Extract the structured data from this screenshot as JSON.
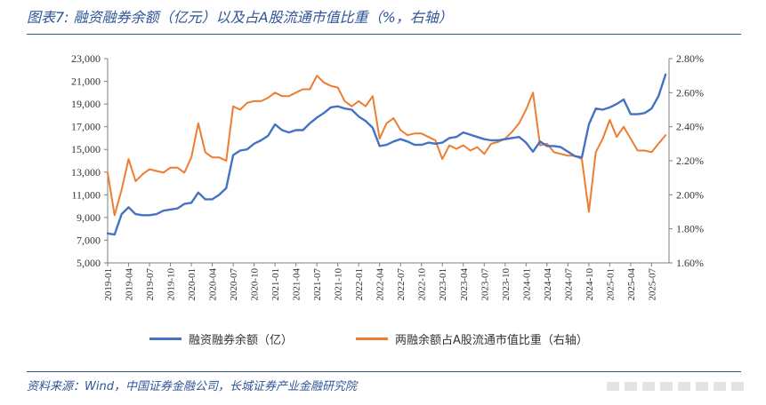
{
  "figure": {
    "title": "图表7: 融资融券余额（亿元）以及占A股流通市值比重（%，右轴）",
    "source": "资料来源：Wind，中国证券金融公司，长城证券产业金融研究院"
  },
  "colors": {
    "blue": "#4472c4",
    "orange": "#ed7d31",
    "accent": "#2f5597"
  },
  "chart_data": {
    "type": "line",
    "title": "",
    "xlabel": "",
    "ylabel": "",
    "y_left": {
      "ticks": [
        "5,000",
        "7,000",
        "9,000",
        "11,000",
        "13,000",
        "15,000",
        "17,000",
        "19,000",
        "21,000",
        "23,000"
      ],
      "range": [
        5000,
        23000
      ]
    },
    "y_right": {
      "ticks": [
        "1.60%",
        "1.80%",
        "2.00%",
        "2.20%",
        "2.40%",
        "2.60%",
        "2.80%"
      ],
      "range": [
        1.6,
        2.8
      ]
    },
    "x_ticks": [
      "2019-01",
      "2019-04",
      "2019-07",
      "2019-10",
      "2020-01",
      "2020-04",
      "2020-07",
      "2020-10",
      "2021-01",
      "2021-04",
      "2021-07",
      "2021-10",
      "2022-01",
      "2022-04",
      "2022-07",
      "2022-10",
      "2023-01",
      "2023-04",
      "2023-07",
      "2023-10",
      "2024-01",
      "2024-04",
      "2024-07",
      "2024-10",
      "2025-01",
      "2025-04",
      "2025-07"
    ],
    "grid": false,
    "legend_position": "bottom",
    "series": [
      {
        "name": "融资融券余额（亿）",
        "axis": "left",
        "color": "#4472c4",
        "x": [
          "2019-01",
          "2019-02",
          "2019-03",
          "2019-04",
          "2019-05",
          "2019-06",
          "2019-07",
          "2019-08",
          "2019-09",
          "2019-10",
          "2019-11",
          "2019-12",
          "2020-01",
          "2020-02",
          "2020-03",
          "2020-04",
          "2020-05",
          "2020-06",
          "2020-07",
          "2020-08",
          "2020-09",
          "2020-10",
          "2020-11",
          "2020-12",
          "2021-01",
          "2021-02",
          "2021-03",
          "2021-04",
          "2021-05",
          "2021-06",
          "2021-07",
          "2021-08",
          "2021-09",
          "2021-10",
          "2021-11",
          "2021-12",
          "2022-01",
          "2022-02",
          "2022-03",
          "2022-04",
          "2022-05",
          "2022-06",
          "2022-07",
          "2022-08",
          "2022-09",
          "2022-10",
          "2022-11",
          "2022-12",
          "2023-01",
          "2023-02",
          "2023-03",
          "2023-04",
          "2023-05",
          "2023-06",
          "2023-07",
          "2023-08",
          "2023-09",
          "2023-10",
          "2023-11",
          "2023-12",
          "2024-01",
          "2024-02",
          "2024-03",
          "2024-04",
          "2024-05",
          "2024-06",
          "2024-07",
          "2024-08",
          "2024-09",
          "2024-10",
          "2024-11",
          "2024-12",
          "2025-01",
          "2025-02",
          "2025-03",
          "2025-04",
          "2025-05",
          "2025-06",
          "2025-07",
          "2025-08",
          "2025-09"
        ],
        "values": [
          7600,
          7500,
          9300,
          9900,
          9300,
          9200,
          9200,
          9300,
          9600,
          9700,
          9800,
          10200,
          10300,
          11200,
          10600,
          10600,
          11000,
          11600,
          14500,
          14900,
          15000,
          15500,
          15800,
          16200,
          17200,
          16700,
          16500,
          16700,
          16700,
          17300,
          17800,
          18200,
          18700,
          18800,
          18600,
          18500,
          17900,
          17500,
          16900,
          15300,
          15400,
          15700,
          15900,
          15700,
          15400,
          15400,
          15600,
          15500,
          15600,
          16000,
          16100,
          16500,
          16300,
          16100,
          15900,
          15800,
          15800,
          15900,
          16000,
          16100,
          15600,
          14800,
          15700,
          15300,
          15300,
          15200,
          14800,
          14400,
          14300,
          17200,
          18600,
          18500,
          18700,
          19000,
          19400,
          18100,
          18100,
          18200,
          18600,
          19700,
          21600
        ]
      },
      {
        "name": "两融余额占A股流通市值比重（右轴）",
        "axis": "right",
        "color": "#ed7d31",
        "x": [
          "2019-01",
          "2019-02",
          "2019-03",
          "2019-04",
          "2019-05",
          "2019-06",
          "2019-07",
          "2019-08",
          "2019-09",
          "2019-10",
          "2019-11",
          "2019-12",
          "2020-01",
          "2020-02",
          "2020-03",
          "2020-04",
          "2020-05",
          "2020-06",
          "2020-07",
          "2020-08",
          "2020-09",
          "2020-10",
          "2020-11",
          "2020-12",
          "2021-01",
          "2021-02",
          "2021-03",
          "2021-04",
          "2021-05",
          "2021-06",
          "2021-07",
          "2021-08",
          "2021-09",
          "2021-10",
          "2021-11",
          "2021-12",
          "2022-01",
          "2022-02",
          "2022-03",
          "2022-04",
          "2022-05",
          "2022-06",
          "2022-07",
          "2022-08",
          "2022-09",
          "2022-10",
          "2022-11",
          "2022-12",
          "2023-01",
          "2023-02",
          "2023-03",
          "2023-04",
          "2023-05",
          "2023-06",
          "2023-07",
          "2023-08",
          "2023-09",
          "2023-10",
          "2023-11",
          "2023-12",
          "2024-01",
          "2024-02",
          "2024-03",
          "2024-04",
          "2024-05",
          "2024-06",
          "2024-07",
          "2024-08",
          "2024-09",
          "2024-10",
          "2024-11",
          "2024-12",
          "2025-01",
          "2025-02",
          "2025-03",
          "2025-04",
          "2025-05",
          "2025-06",
          "2025-07",
          "2025-08",
          "2025-09"
        ],
        "values": [
          2.13,
          1.88,
          2.03,
          2.21,
          2.08,
          2.12,
          2.15,
          2.14,
          2.13,
          2.16,
          2.16,
          2.13,
          2.22,
          2.42,
          2.25,
          2.22,
          2.22,
          2.2,
          2.52,
          2.5,
          2.54,
          2.55,
          2.55,
          2.57,
          2.6,
          2.58,
          2.58,
          2.6,
          2.62,
          2.62,
          2.7,
          2.66,
          2.64,
          2.63,
          2.55,
          2.52,
          2.55,
          2.52,
          2.58,
          2.33,
          2.42,
          2.45,
          2.38,
          2.35,
          2.36,
          2.36,
          2.34,
          2.32,
          2.21,
          2.29,
          2.27,
          2.29,
          2.26,
          2.28,
          2.24,
          2.3,
          2.31,
          2.33,
          2.37,
          2.42,
          2.5,
          2.6,
          2.29,
          2.3,
          2.25,
          2.24,
          2.23,
          2.23,
          2.21,
          1.9,
          2.25,
          2.33,
          2.44,
          2.34,
          2.4,
          2.33,
          2.26,
          2.26,
          2.25,
          2.3,
          2.35
        ]
      }
    ]
  }
}
